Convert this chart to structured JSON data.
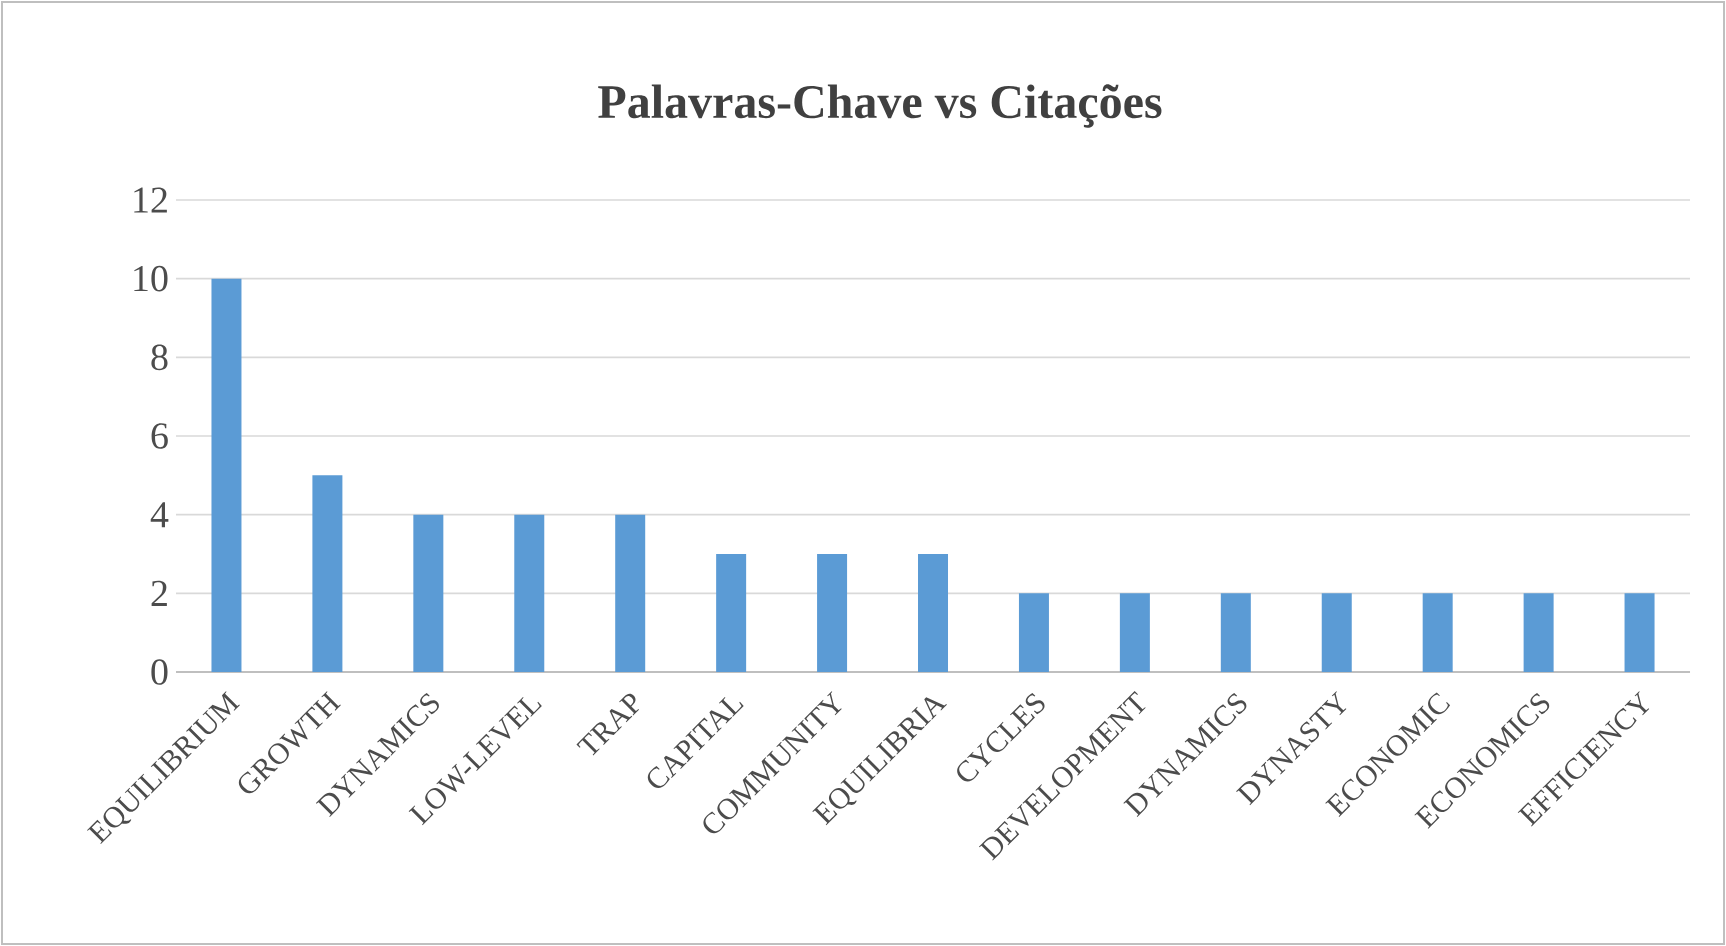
{
  "chart_data": {
    "type": "bar",
    "title": "Palavras-Chave vs Citações",
    "categories": [
      "EQUILIBRIUM",
      "GROWTH",
      "DYNAMICS",
      "LOW-LEVEL",
      "TRAP",
      "CAPITAL",
      "COMMUNITY",
      "EQUILIBRIA",
      "CYCLES",
      "DEVELOPMENT",
      "DYNAMICS",
      "DYNASTY",
      "ECONOMIC",
      "ECONOMICS",
      "EFFICIENCY"
    ],
    "values": [
      10,
      5,
      4,
      4,
      4,
      3,
      3,
      3,
      2,
      2,
      2,
      2,
      2,
      2,
      2
    ],
    "color": "#5b9bd5",
    "ylim": [
      0,
      12
    ],
    "yticks": [
      0,
      2,
      4,
      6,
      8,
      10,
      12
    ],
    "grid": "y"
  }
}
